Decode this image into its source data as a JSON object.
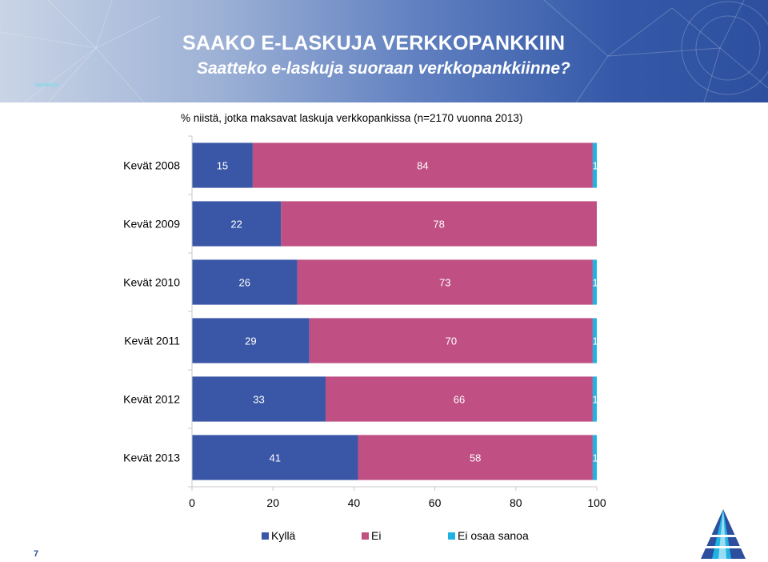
{
  "slide": {
    "title": "SAAKO E-LASKUJA VERKKOPANKKIIN",
    "subtitle": "Saatteko e-laskuja suoraan verkkopankkiinne?",
    "note": "% niistä, jotka maksavat laskuja verkkopankissa (n=2170 vuonna 2013)",
    "page_number": "7"
  },
  "colors": {
    "header_dark": "#2d4f9e",
    "kylla": "#3a57a7",
    "ei": "#c04f83",
    "eos": "#1fb3e3"
  },
  "chart_data": {
    "type": "bar",
    "orientation": "horizontal",
    "stacked": true,
    "title": "",
    "xlabel": "",
    "ylabel": "",
    "xlim": [
      0,
      100
    ],
    "xticks": [
      0,
      20,
      40,
      60,
      80,
      100
    ],
    "categories": [
      "Kevät 2008",
      "Kevät 2009",
      "Kevät 2010",
      "Kevät 2011",
      "Kevät 2012",
      "Kevät 2013"
    ],
    "series": [
      {
        "name": "Kyllä",
        "color": "#3a57a7",
        "values": [
          15,
          22,
          26,
          29,
          33,
          41
        ],
        "labels": [
          "15",
          "22",
          "26",
          "29",
          "33",
          "41"
        ]
      },
      {
        "name": "Ei",
        "color": "#c04f83",
        "values": [
          84,
          78,
          73,
          70,
          66,
          58
        ],
        "labels": [
          "84",
          "78",
          "73",
          "70",
          "66",
          "58"
        ]
      },
      {
        "name": "Ei osaa sanoa",
        "color": "#1fb3e3",
        "values": [
          1,
          0,
          1,
          1,
          1,
          1
        ],
        "labels": [
          "1",
          "",
          "1",
          "1",
          "1",
          "1"
        ]
      }
    ],
    "legend": "bottom-center",
    "grid": false
  }
}
